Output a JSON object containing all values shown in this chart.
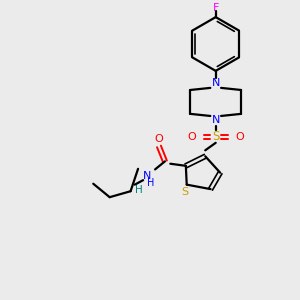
{
  "bg_color": "#ebebeb",
  "bond_color": "#000000",
  "S_color": "#c8a000",
  "N_color": "#0000ff",
  "O_color": "#ff0000",
  "F_color": "#ff00ff",
  "H_color": "#008080",
  "figsize": [
    3.0,
    3.0
  ],
  "dpi": 100,
  "xlim": [
    0,
    10
  ],
  "ylim": [
    0,
    10
  ]
}
